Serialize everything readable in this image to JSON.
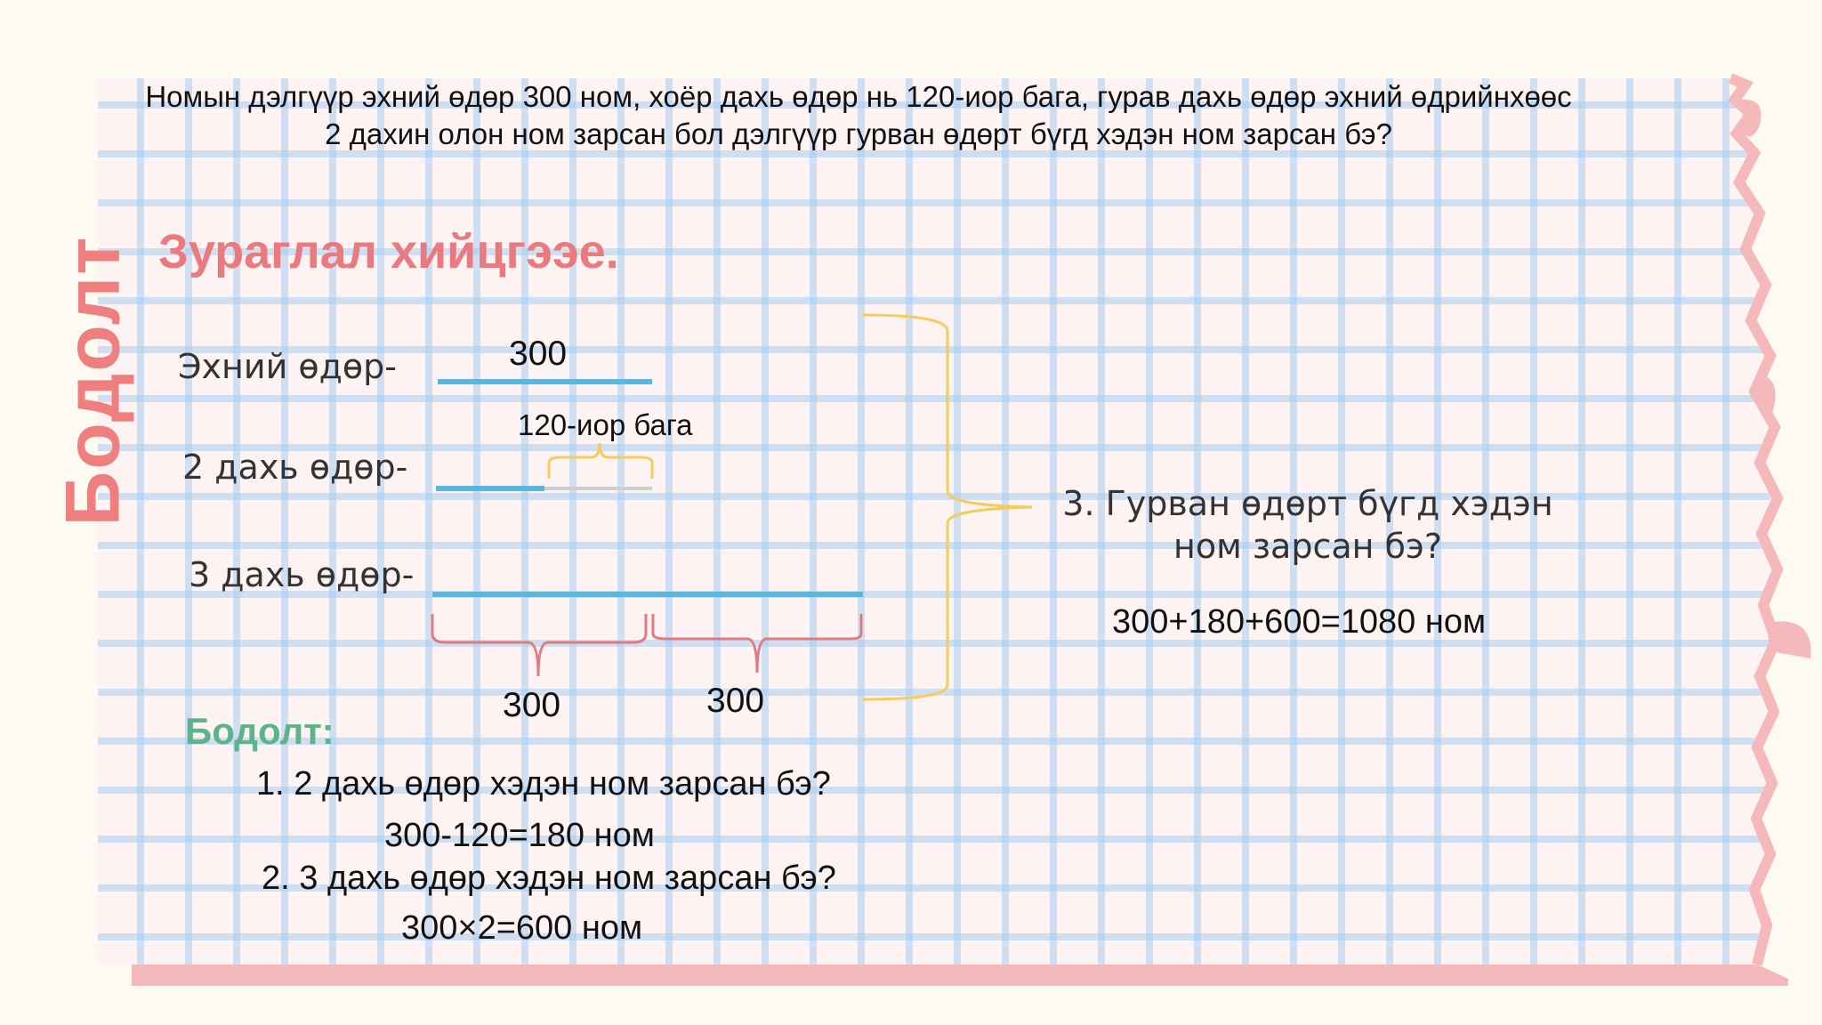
{
  "problem": {
    "line1": "Номын дэлгүүр эхний өдөр 300 ном, хоёр дахь өдөр нь 120-иор бага, гурав дахь өдөр эхний өдрийнхөөс",
    "line2": "2 дахин олон ном зарсан бол дэлгүүр гурван өдөрт бүгд хэдэн ном зарсан бэ?"
  },
  "side_title": "Бодолт",
  "diagram": {
    "heading": "Зураглал хийцгээе.",
    "rows": [
      {
        "label": "Эхний өдөр-",
        "value_label": "300"
      },
      {
        "label": "2 дахь  өдөр-",
        "note": "120-иор бага"
      },
      {
        "label": "3 дахь  өдөр-",
        "segment_labels": [
          "300",
          "300"
        ]
      }
    ],
    "question": "3. Гурван өдөрт бүгд хэдэн ном зарсан бэ?",
    "answer": "300+180+600=1080 ном"
  },
  "solution": {
    "heading": "Бодолт:",
    "steps": [
      {
        "question": "1. 2 дахь өдөр хэдэн ном зарсан бэ?",
        "answer": "300-120=180 ном"
      },
      {
        "question": "2. 3 дахь өдөр хэдэн ном зарсан бэ?",
        "answer": "300×2=600 ном"
      }
    ]
  },
  "colors": {
    "accent_red": "#ea7a7e",
    "accent_green": "#5bb48a",
    "bar_blue": "#5ab8e0",
    "brace_yellow": "#f3cc5a",
    "brace_red": "#e27b80"
  }
}
